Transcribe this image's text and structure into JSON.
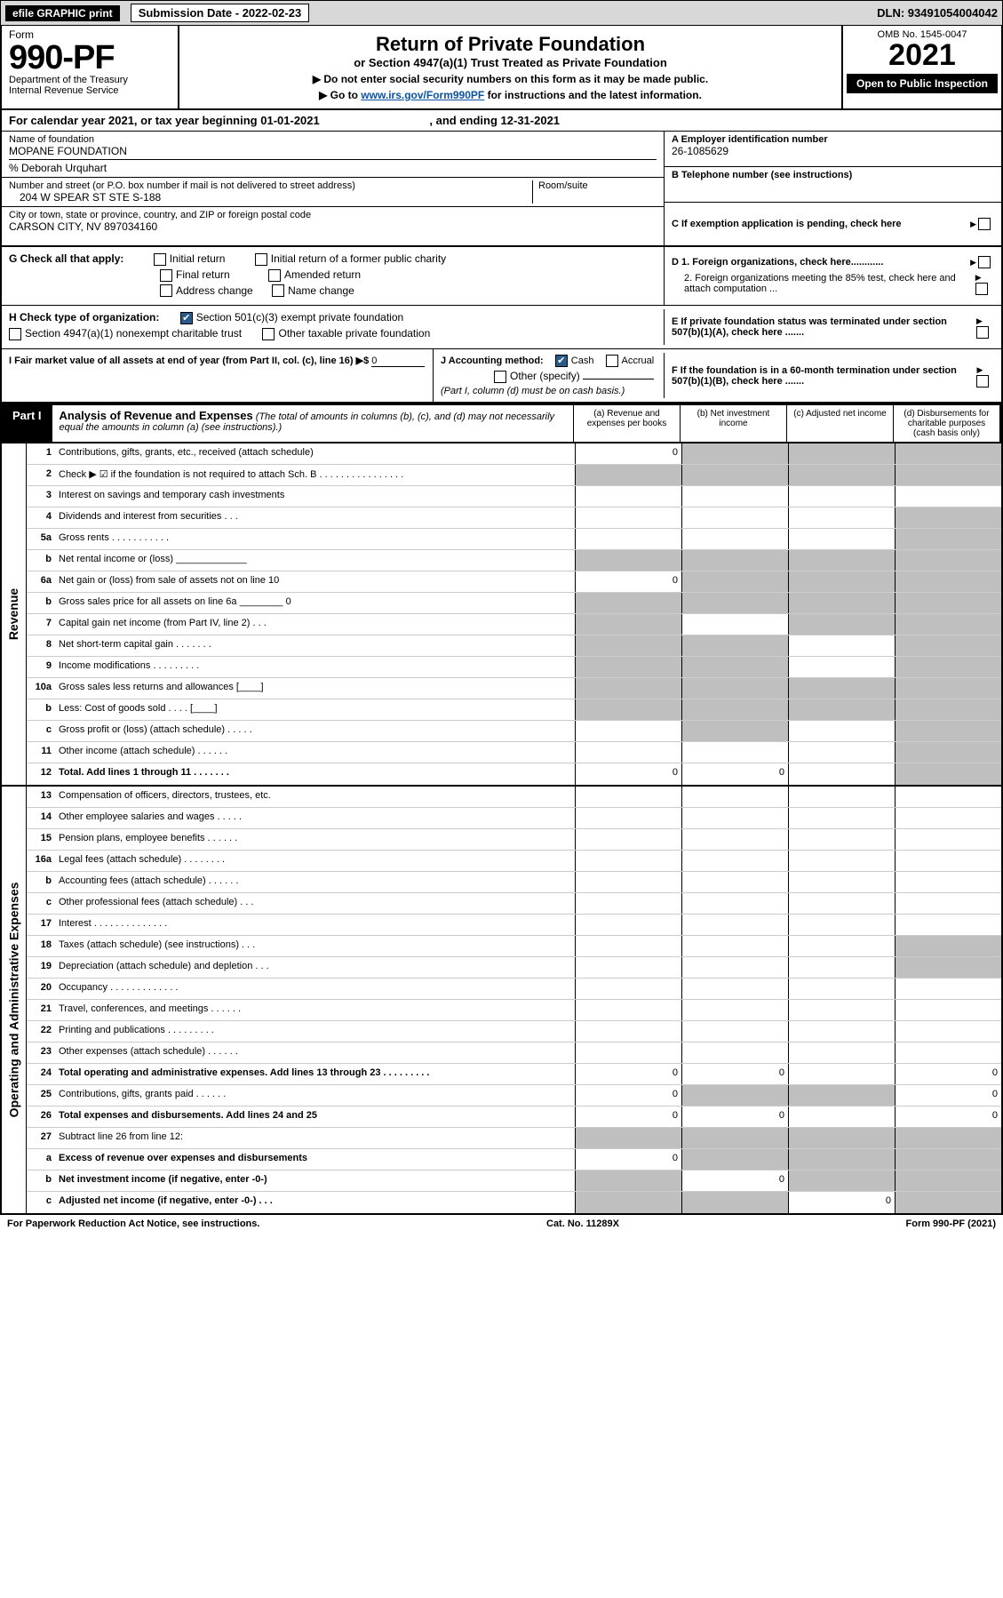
{
  "colors": {
    "top_bar_bg": "#d8d8d8",
    "black": "#000000",
    "white": "#ffffff",
    "link": "#0b52a0",
    "shade": "#bfbfbf",
    "check_bg": "#2a5a8a",
    "row_border": "#cccccc"
  },
  "top": {
    "efile": "efile GRAPHIC print",
    "sub_date_label": "Submission Date - 2022-02-23",
    "dln": "DLN: 93491054004042"
  },
  "header": {
    "form_word": "Form",
    "form_no": "990-PF",
    "dept": "Department of the Treasury",
    "irs": "Internal Revenue Service",
    "title": "Return of Private Foundation",
    "subtitle": "or Section 4947(a)(1) Trust Treated as Private Foundation",
    "instr1": "▶ Do not enter social security numbers on this form as it may be made public.",
    "instr2_pre": "▶ Go to ",
    "instr2_link": "www.irs.gov/Form990PF",
    "instr2_post": " for instructions and the latest information.",
    "omb": "OMB No. 1545-0047",
    "year": "2021",
    "open": "Open to Public Inspection"
  },
  "calendar": {
    "pre": "For calendar year 2021, or tax year beginning ",
    "begin": "01-01-2021",
    "mid": ", and ending ",
    "end": "12-31-2021"
  },
  "id": {
    "name_label": "Name of foundation",
    "name": "MOPANE FOUNDATION",
    "care_of": "% Deborah Urquhart",
    "street_label": "Number and street (or P.O. box number if mail is not delivered to street address)",
    "street": "204 W SPEAR ST STE S-188",
    "room_label": "Room/suite",
    "city_label": "City or town, state or province, country, and ZIP or foreign postal code",
    "city": "CARSON CITY, NV  897034160",
    "a_label": "A Employer identification number",
    "a_val": "26-1085629",
    "b_label": "B Telephone number (see instructions)",
    "c_label": "C If exemption application is pending, check here"
  },
  "g": {
    "label": "G Check all that apply:",
    "initial": "Initial return",
    "initial_former": "Initial return of a former public charity",
    "final": "Final return",
    "amended": "Amended return",
    "address": "Address change",
    "name": "Name change"
  },
  "d": {
    "d1": "D 1. Foreign organizations, check here............",
    "d2": "2. Foreign organizations meeting the 85% test, check here and attach computation ..."
  },
  "h": {
    "label": "H Check type of organization:",
    "opt1": "Section 501(c)(3) exempt private foundation",
    "opt2": "Section 4947(a)(1) nonexempt charitable trust",
    "opt3": "Other taxable private foundation"
  },
  "e": "E If private foundation status was terminated under section 507(b)(1)(A), check here .......",
  "i": {
    "label": "I Fair market value of all assets at end of year (from Part II, col. (c), line 16) ▶$",
    "val": "0"
  },
  "j": {
    "label": "J Accounting method:",
    "cash": "Cash",
    "accrual": "Accrual",
    "other": "Other (specify)",
    "note": "(Part I, column (d) must be on cash basis.)"
  },
  "f": "F If the foundation is in a 60-month termination under section 507(b)(1)(B), check here .......",
  "part1": {
    "tab": "Part I",
    "title": "Analysis of Revenue and Expenses",
    "note": "(The total of amounts in columns (b), (c), and (d) may not necessarily equal the amounts in column (a) (see instructions).)",
    "cols": {
      "a": "(a) Revenue and expenses per books",
      "b": "(b) Net investment income",
      "c": "(c) Adjusted net income",
      "d": "(d) Disbursements for charitable purposes (cash basis only)"
    }
  },
  "sections": {
    "revenue": "Revenue",
    "expenses": "Operating and Administrative Expenses"
  },
  "rows": [
    {
      "ln": "1",
      "desc": "Contributions, gifts, grants, etc., received (attach schedule)",
      "a": "0",
      "shade": [
        "b",
        "c",
        "d"
      ]
    },
    {
      "ln": "2",
      "desc": "Check ▶ ☑ if the foundation is not required to attach Sch. B   .  .  .  .  .  .  .  .  .  .  .  .  .  .  .  .",
      "shade": [
        "a",
        "b",
        "c",
        "d"
      ]
    },
    {
      "ln": "3",
      "desc": "Interest on savings and temporary cash investments"
    },
    {
      "ln": "4",
      "desc": "Dividends and interest from securities   .   .   .",
      "shade": [
        "d"
      ]
    },
    {
      "ln": "5a",
      "desc": "Gross rents   .   .   .   .   .   .   .   .   .   .   .",
      "shade": [
        "d"
      ]
    },
    {
      "ln": "b",
      "desc": "Net rental income or (loss)  _____________",
      "shade": [
        "a",
        "b",
        "c",
        "d"
      ]
    },
    {
      "ln": "6a",
      "desc": "Net gain or (loss) from sale of assets not on line 10",
      "a": "0",
      "shade": [
        "b",
        "c",
        "d"
      ]
    },
    {
      "ln": "b",
      "desc": "Gross sales price for all assets on line 6a ________ 0",
      "shade": [
        "a",
        "b",
        "c",
        "d"
      ]
    },
    {
      "ln": "7",
      "desc": "Capital gain net income (from Part IV, line 2)   .   .   .",
      "shade": [
        "a",
        "c",
        "d"
      ]
    },
    {
      "ln": "8",
      "desc": "Net short-term capital gain   .   .   .   .   .   .   .",
      "shade": [
        "a",
        "b",
        "d"
      ]
    },
    {
      "ln": "9",
      "desc": "Income modifications   .   .   .   .   .   .   .   .   .",
      "shade": [
        "a",
        "b",
        "d"
      ]
    },
    {
      "ln": "10a",
      "desc": "Gross sales less returns and allowances   [____]",
      "shade": [
        "a",
        "b",
        "c",
        "d"
      ]
    },
    {
      "ln": "b",
      "desc": "Less: Cost of goods sold   .   .   .   .   [____]",
      "shade": [
        "a",
        "b",
        "c",
        "d"
      ]
    },
    {
      "ln": "c",
      "desc": "Gross profit or (loss) (attach schedule)   .   .   .   .   .",
      "shade": [
        "b",
        "d"
      ]
    },
    {
      "ln": "11",
      "desc": "Other income (attach schedule)   .   .   .   .   .   .",
      "shade": [
        "d"
      ]
    },
    {
      "ln": "12",
      "desc": "Total. Add lines 1 through 11   .   .   .   .   .   .   .",
      "bold": true,
      "a": "0",
      "b": "0",
      "shade": [
        "d"
      ]
    }
  ],
  "exp_rows": [
    {
      "ln": "13",
      "desc": "Compensation of officers, directors, trustees, etc."
    },
    {
      "ln": "14",
      "desc": "Other employee salaries and wages   .   .   .   .   ."
    },
    {
      "ln": "15",
      "desc": "Pension plans, employee benefits   .   .   .   .   .   ."
    },
    {
      "ln": "16a",
      "desc": "Legal fees (attach schedule)   .   .   .   .   .   .   .   ."
    },
    {
      "ln": "b",
      "desc": "Accounting fees (attach schedule)   .   .   .   .   .   ."
    },
    {
      "ln": "c",
      "desc": "Other professional fees (attach schedule)   .   .   ."
    },
    {
      "ln": "17",
      "desc": "Interest   .   .   .   .   .   .   .   .   .   .   .   .   .   ."
    },
    {
      "ln": "18",
      "desc": "Taxes (attach schedule) (see instructions)   .   .   .",
      "shade": [
        "d"
      ]
    },
    {
      "ln": "19",
      "desc": "Depreciation (attach schedule) and depletion   .   .   .",
      "shade": [
        "d"
      ]
    },
    {
      "ln": "20",
      "desc": "Occupancy   .   .   .   .   .   .   .   .   .   .   .   .   ."
    },
    {
      "ln": "21",
      "desc": "Travel, conferences, and meetings   .   .   .   .   .   ."
    },
    {
      "ln": "22",
      "desc": "Printing and publications   .   .   .   .   .   .   .   .   ."
    },
    {
      "ln": "23",
      "desc": "Other expenses (attach schedule)   .   .   .   .   .   ."
    },
    {
      "ln": "24",
      "desc": "Total operating and administrative expenses. Add lines 13 through 23   .   .   .   .   .   .   .   .   .",
      "bold": true,
      "a": "0",
      "b": "0",
      "d": "0"
    },
    {
      "ln": "25",
      "desc": "Contributions, gifts, grants paid   .   .   .   .   .   .",
      "a": "0",
      "d": "0",
      "shade": [
        "b",
        "c"
      ]
    },
    {
      "ln": "26",
      "desc": "Total expenses and disbursements. Add lines 24 and 25",
      "bold": true,
      "a": "0",
      "b": "0",
      "d": "0"
    },
    {
      "ln": "27",
      "desc": "Subtract line 26 from line 12:",
      "shade": [
        "a",
        "b",
        "c",
        "d"
      ]
    },
    {
      "ln": "a",
      "desc": "Excess of revenue over expenses and disbursements",
      "bold": true,
      "a": "0",
      "shade": [
        "b",
        "c",
        "d"
      ]
    },
    {
      "ln": "b",
      "desc": "Net investment income (if negative, enter -0-)",
      "bold": true,
      "b": "0",
      "shade": [
        "a",
        "c",
        "d"
      ]
    },
    {
      "ln": "c",
      "desc": "Adjusted net income (if negative, enter -0-)   .   .   .",
      "bold": true,
      "c": "0",
      "shade": [
        "a",
        "b",
        "d"
      ]
    }
  ],
  "footer": {
    "left": "For Paperwork Reduction Act Notice, see instructions.",
    "mid": "Cat. No. 11289X",
    "right": "Form 990-PF (2021)"
  }
}
